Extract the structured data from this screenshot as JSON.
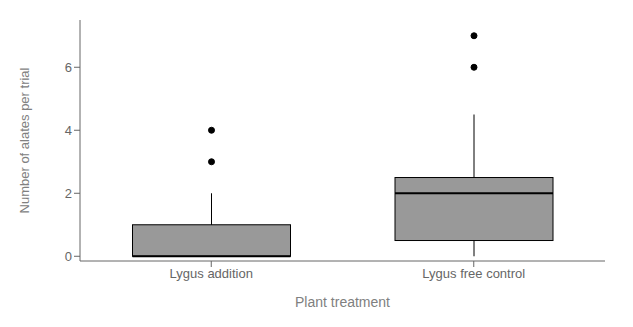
{
  "chart_data": {
    "type": "box",
    "categories": [
      "Lygus addition",
      "Lygus free control"
    ],
    "boxes": [
      {
        "q1": 0,
        "median": 0,
        "q3": 1,
        "whisker_low": 0,
        "whisker_high": 2,
        "outliers": [
          3,
          4
        ]
      },
      {
        "q1": 0.5,
        "median": 2,
        "q3": 2.5,
        "whisker_low": 0,
        "whisker_high": 4.5,
        "outliers": [
          6,
          7
        ]
      }
    ],
    "xlabel": "Plant treatment",
    "ylabel": "Number of alates per trial",
    "ylim": [
      -0.15,
      7.5
    ],
    "yticks": [
      0,
      2,
      4,
      6
    ],
    "color": "#999999"
  }
}
